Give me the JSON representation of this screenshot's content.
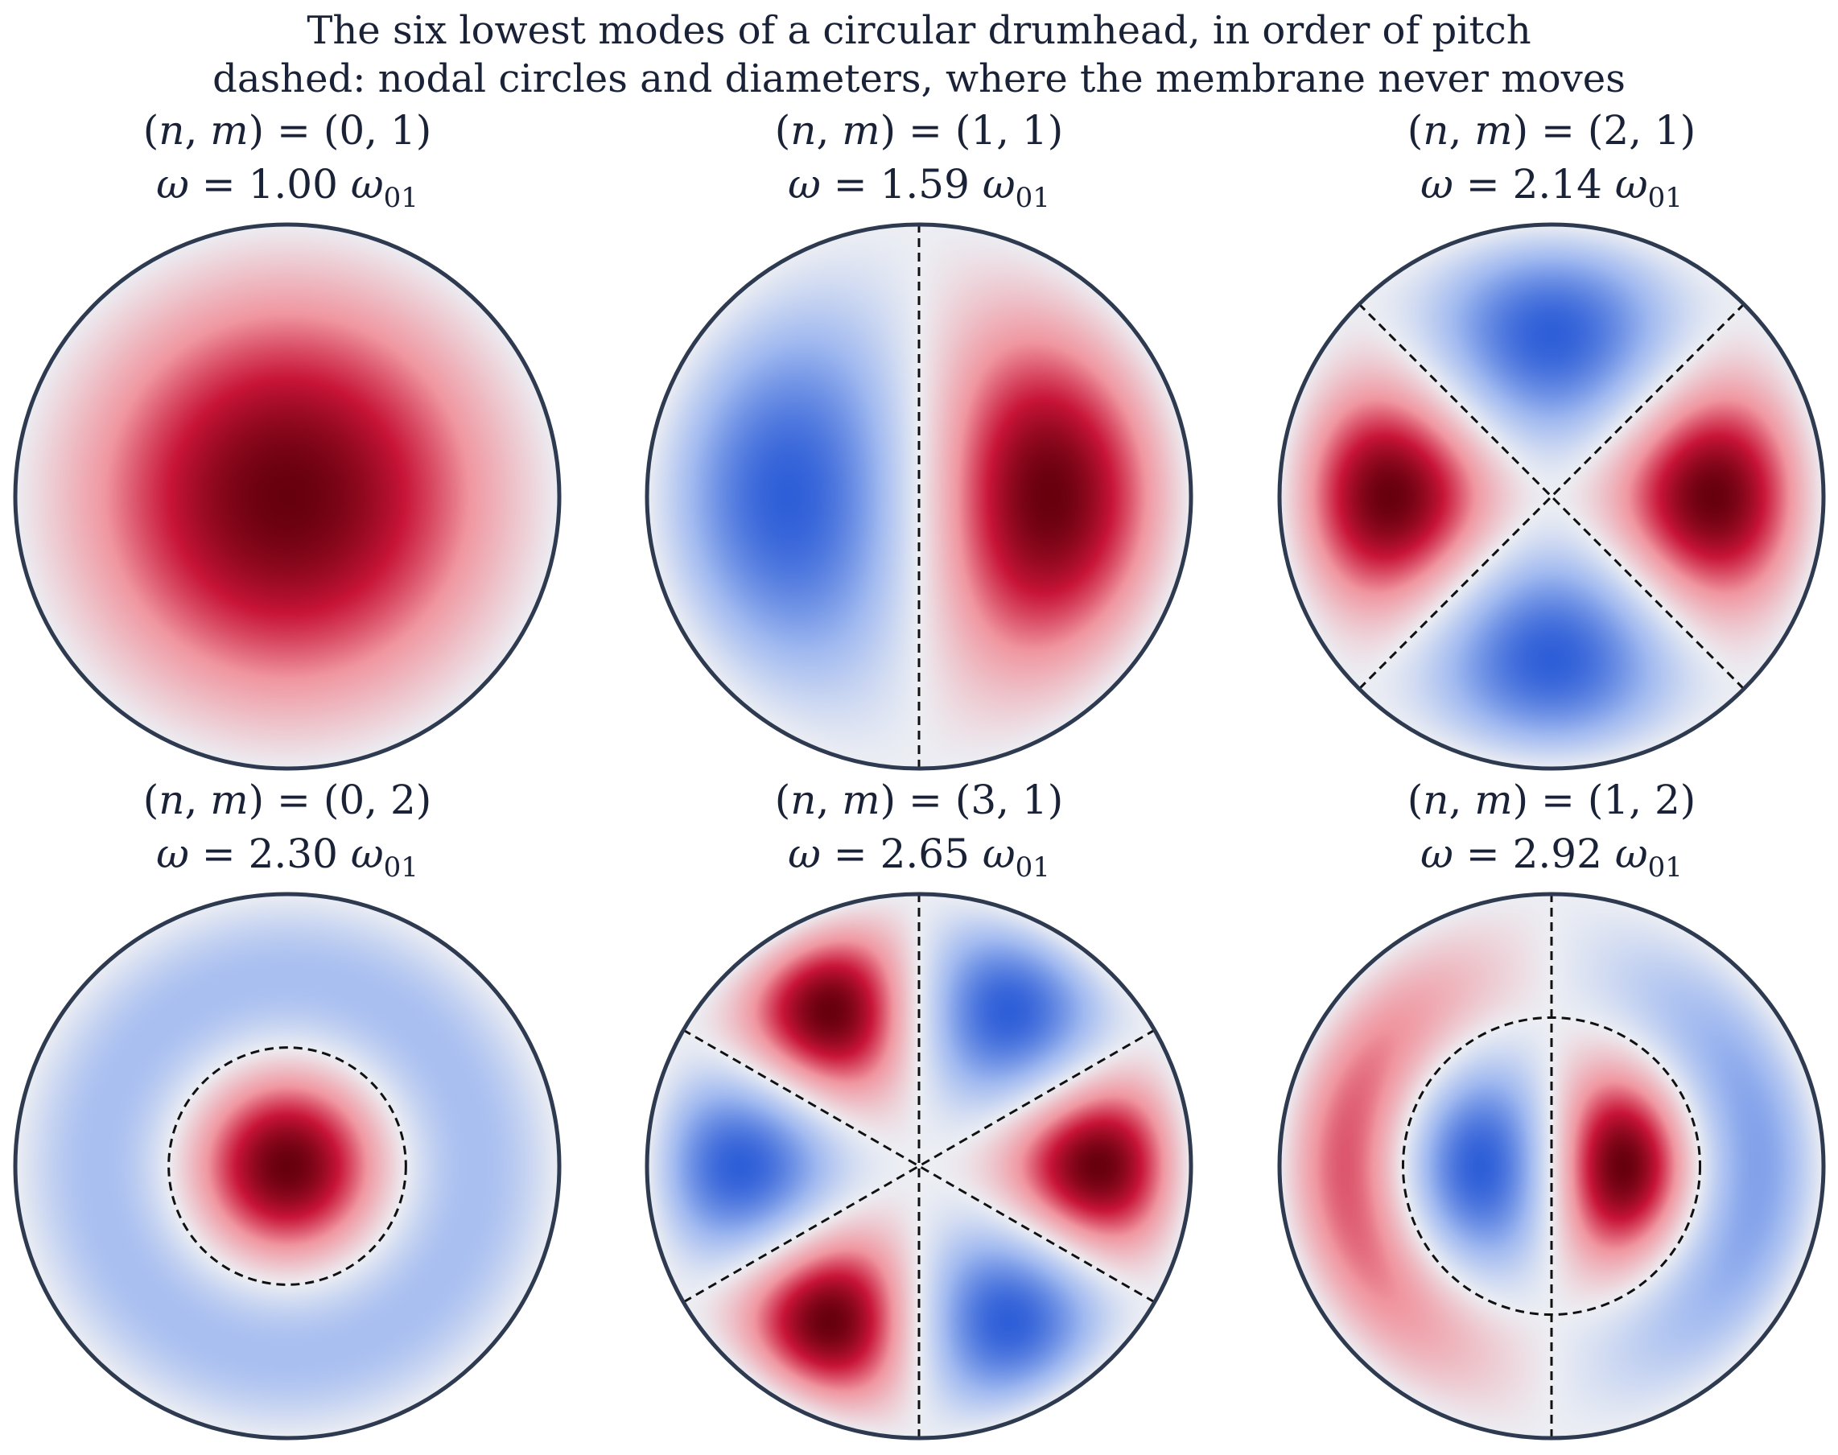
{
  "figure": {
    "title": "The six lowest modes of a circular drumhead, in order of pitch",
    "subtitle": "dashed: nodal circles and diameters, where the membrane never moves"
  },
  "colors": {
    "positive": "#67000d",
    "negative": "#2f5fd8",
    "zero": "#eceef3",
    "rim": "#2e3a50",
    "nodal": "#111111",
    "text": "#1a2238"
  },
  "modes": [
    {
      "n": 0,
      "m": 1,
      "label_nm": "(n, m) = (0, 1)",
      "label_omega": "ω = 1.00 ω01",
      "ratio": 1.0,
      "nodal_diameters": 0,
      "nodal_circle_radii": []
    },
    {
      "n": 1,
      "m": 1,
      "label_nm": "(n, m) = (1, 1)",
      "label_omega": "ω = 1.59 ω01",
      "ratio": 1.59,
      "nodal_diameters": 1,
      "nodal_circle_radii": []
    },
    {
      "n": 2,
      "m": 1,
      "label_nm": "(n, m) = (2, 1)",
      "label_omega": "ω = 2.14 ω01",
      "ratio": 2.14,
      "nodal_diameters": 2,
      "nodal_circle_radii": []
    },
    {
      "n": 0,
      "m": 2,
      "label_nm": "(n, m) = (0, 2)",
      "label_omega": "ω = 2.30 ω01",
      "ratio": 2.3,
      "nodal_diameters": 0,
      "nodal_circle_radii": [
        0.436
      ]
    },
    {
      "n": 3,
      "m": 1,
      "label_nm": "(n, m) = (3, 1)",
      "label_omega": "ω = 2.65 ω01",
      "ratio": 2.65,
      "nodal_diameters": 3,
      "nodal_circle_radii": []
    },
    {
      "n": 1,
      "m": 2,
      "label_nm": "(n, m) = (1, 2)",
      "label_omega": "ω = 2.92 ω01",
      "ratio": 2.92,
      "nodal_diameters": 1,
      "nodal_circle_radii": [
        0.546
      ]
    }
  ]
}
